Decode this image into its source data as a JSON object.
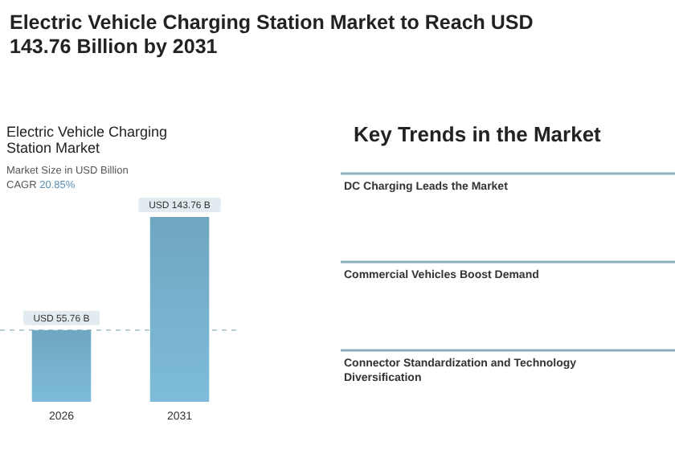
{
  "chart_data": [
    {
      "type": "other",
      "title": "Electric Vehicle Charging Station Market to Reach USD 143.76 Billion by 2031"
    },
    {
      "type": "bar",
      "title": "Electric Vehicle Charging Station Market",
      "subtitle": "Market Size in USD Billion",
      "annotations": [
        "CAGR 20.85%"
      ],
      "categories": [
        "2026",
        "2031"
      ],
      "values": [
        55.76,
        143.76
      ],
      "color": "#6fa6c0",
      "value_labels": [
        "USD 55.76 B",
        "USD 143.76 B"
      ],
      "ref_lines": [
        {
          "axis": "y",
          "value": 55.76,
          "color": "#9fbccb",
          "line_style": "dashed"
        }
      ]
    },
    {
      "type": "other",
      "title": "Key Trends in the Market",
      "annotations": [
        "DC Charging Leads the Market",
        "Commercial Vehicles Boost Demand",
        "Connector Standardization and Technology Diversification"
      ]
    }
  ]
}
